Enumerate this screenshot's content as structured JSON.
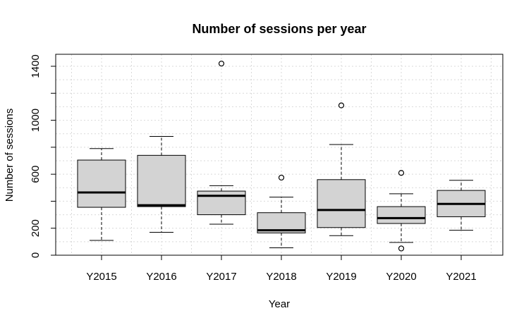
{
  "chart_data": {
    "type": "boxplot",
    "title": "Number of sessions per year",
    "xlabel": "Year",
    "ylabel": "Number of sessions",
    "ylim": [
      0,
      1500
    ],
    "y_ticks_labeled": [
      0,
      200,
      600,
      1000,
      1400
    ],
    "y_ticks_minor": [
      400,
      800,
      1200
    ],
    "grid": true,
    "grid_style": "dotted",
    "colors": {
      "box_fill": "#d3d3d3",
      "grid": "#d9d9d9",
      "stroke": "#000000"
    },
    "categories": [
      "Y2015",
      "Y2016",
      "Y2017",
      "Y2018",
      "Y2019",
      "Y2020",
      "Y2021"
    ],
    "boxes": [
      {
        "category": "Y2015",
        "whisker_low": 110,
        "q1": 355,
        "median": 465,
        "q3": 705,
        "whisker_high": 790,
        "outliers": []
      },
      {
        "category": "Y2016",
        "whisker_low": 170,
        "q1": 360,
        "median": 370,
        "q3": 740,
        "whisker_high": 880,
        "outliers": []
      },
      {
        "category": "Y2017",
        "whisker_low": 230,
        "q1": 300,
        "median": 440,
        "q3": 475,
        "whisker_high": 515,
        "outliers": [
          1420
        ]
      },
      {
        "category": "Y2018",
        "whisker_low": 55,
        "q1": 165,
        "median": 185,
        "q3": 315,
        "whisker_high": 430,
        "outliers": [
          575
        ]
      },
      {
        "category": "Y2019",
        "whisker_low": 145,
        "q1": 205,
        "median": 335,
        "q3": 560,
        "whisker_high": 820,
        "outliers": [
          1110
        ]
      },
      {
        "category": "Y2020",
        "whisker_low": 95,
        "q1": 235,
        "median": 275,
        "q3": 360,
        "whisker_high": 455,
        "outliers": [
          610,
          50
        ]
      },
      {
        "category": "Y2021",
        "whisker_low": 185,
        "q1": 285,
        "median": 380,
        "q3": 480,
        "whisker_high": 555,
        "outliers": []
      }
    ]
  }
}
